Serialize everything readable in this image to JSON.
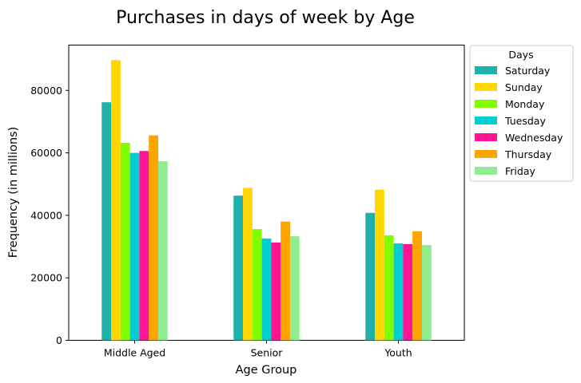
{
  "chart_data": {
    "type": "bar",
    "title": "Purchases in days of week by Age",
    "xlabel": "Age Group",
    "ylabel": "Frequency (in millions)",
    "categories": [
      "Middle Aged",
      "Senior",
      "Youth"
    ],
    "ylim": [
      0,
      94500
    ],
    "yticks": [
      0,
      20000,
      40000,
      60000,
      80000
    ],
    "ytick_labels": [
      "0",
      "20000",
      "40000",
      "60000",
      "80000"
    ],
    "grid": false,
    "legend": {
      "title": "Days",
      "position": "outside-top-right"
    },
    "series": [
      {
        "name": "Saturday",
        "color": "#20b2aa",
        "values": [
          76200,
          46300,
          40800
        ]
      },
      {
        "name": "Sunday",
        "color": "#ffd700",
        "values": [
          89700,
          48800,
          48200
        ]
      },
      {
        "name": "Monday",
        "color": "#7fff00",
        "values": [
          63200,
          35600,
          33600
        ]
      },
      {
        "name": "Tuesday",
        "color": "#00ced1",
        "values": [
          60000,
          32600,
          31000
        ]
      },
      {
        "name": "Wednesday",
        "color": "#ff1493",
        "values": [
          60600,
          31300,
          30800
        ]
      },
      {
        "name": "Thursday",
        "color": "#ffa500",
        "values": [
          65600,
          38000,
          34900
        ]
      },
      {
        "name": "Friday",
        "color": "#90ee90",
        "values": [
          57300,
          33300,
          30500
        ]
      }
    ]
  }
}
